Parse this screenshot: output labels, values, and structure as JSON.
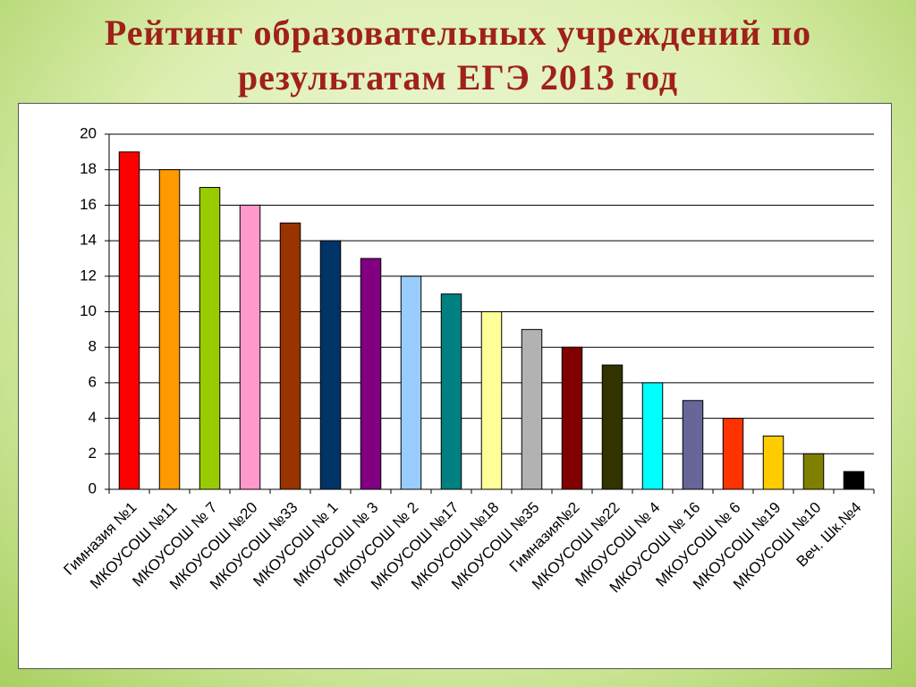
{
  "chart_data": {
    "type": "bar",
    "title": "Рейтинг образовательных учреждений по результатам ЕГЭ 2013 год",
    "categories": [
      "Гимназия №1",
      "МКОУСОШ №11",
      "МКОУСОШ № 7",
      "МКОУСОШ №20",
      "МКОУСОШ №33",
      "МКОУСОШ № 1",
      "МКОУСОШ № 3",
      "МКОУСОШ № 2",
      "МКОУСОШ №17",
      "МКОУСОШ №18",
      "МКОУСОШ №35",
      "Гимназия№2",
      "МКОУСОШ №22",
      "МКОУСОШ № 4",
      "МКОУСОШ № 16",
      "МКОУСОШ № 6",
      "МКОУСОШ №19",
      "МКОУСОШ №10",
      "Веч. Шк.№4"
    ],
    "values": [
      19,
      18,
      17,
      16,
      15,
      14,
      13,
      12,
      11,
      10,
      9,
      8,
      7,
      6,
      5,
      4,
      3,
      2,
      1
    ],
    "colors": [
      "#ff0000",
      "#ff9900",
      "#99cc00",
      "#ff99cc",
      "#993300",
      "#003366",
      "#800080",
      "#99ccff",
      "#008080",
      "#ffff99",
      "#b2b2b2",
      "#800000",
      "#333300",
      "#00ffff",
      "#666699",
      "#ff3300",
      "#ffcc00",
      "#808000",
      "#000000"
    ],
    "ylim": [
      0,
      20
    ],
    "yticks": [
      0,
      2,
      4,
      6,
      8,
      10,
      12,
      14,
      16,
      18,
      20
    ],
    "grid": true
  }
}
